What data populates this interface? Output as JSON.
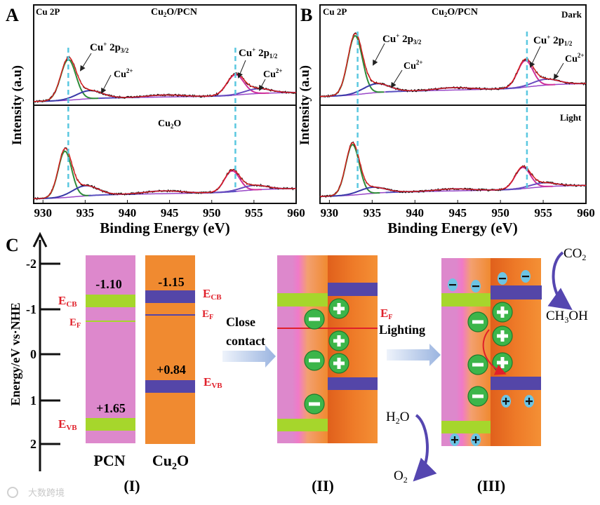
{
  "panel_labels": {
    "a": "A",
    "b": "B",
    "c": "C"
  },
  "xps": {
    "ylabel": "Intensity (a.u)",
    "xlabel": "Binding Energy (eV)",
    "element": "Cu 2P",
    "top_title_a": "Cu2O/PCN",
    "bottom_title_a": "Cu2O",
    "top_title_b": "Cu2O/PCN",
    "state_dark": "Dark",
    "state_light": "Light",
    "peak_label_32": {
      "main": "Cu",
      "sup": "+",
      "mid": " 2p",
      "sub": "3/2"
    },
    "peak_label_12": {
      "main": "Cu",
      "sup": "+",
      "mid": " 2p",
      "sub": "1/2"
    },
    "peak_label_cu2": {
      "main": "Cu",
      "sup": "2+"
    },
    "xticks": [
      "930",
      "935",
      "940",
      "945",
      "950",
      "955",
      "960"
    ]
  },
  "chart_data": [
    {
      "type": "line",
      "title": "A: Cu2O/PCN",
      "xlabel": "Binding Energy (eV)",
      "ylabel": "Intensity (a.u)",
      "xlim": [
        928.9,
        960
      ],
      "ref_lines": [
        933.0,
        952.8
      ],
      "peaks": [
        {
          "name": "Cu+ 2p3/2",
          "center": 933.0,
          "height": 1.0,
          "width": 0.9
        },
        {
          "name": "Cu2+",
          "center": 935.5,
          "height": 0.2,
          "width": 1.5
        },
        {
          "name": "satellite",
          "center": 944.5,
          "height": 0.05,
          "width": 2.0
        },
        {
          "name": "Cu+ 2p1/2",
          "center": 952.8,
          "height": 0.5,
          "width": 1.0
        },
        {
          "name": "Cu2+",
          "center": 955.5,
          "height": 0.12,
          "width": 1.5
        }
      ]
    },
    {
      "type": "line",
      "title": "A: Cu2O",
      "xlim": [
        928.9,
        960
      ],
      "ref_lines": [
        933.0,
        952.8
      ],
      "peaks": [
        {
          "name": "Cu+ 2p3/2",
          "center": 932.6,
          "height": 1.0,
          "width": 0.8
        },
        {
          "name": "Cu2+",
          "center": 935.0,
          "height": 0.22,
          "width": 1.5
        },
        {
          "name": "satellite",
          "center": 944.2,
          "height": 0.06,
          "width": 2.2
        },
        {
          "name": "Cu+ 2p1/2",
          "center": 952.4,
          "height": 0.45,
          "width": 0.9
        },
        {
          "name": "Cu2+",
          "center": 955.0,
          "height": 0.1,
          "width": 1.5
        }
      ]
    },
    {
      "type": "line",
      "title": "B: Cu2O/PCN Dark",
      "xlim": [
        928.9,
        960
      ],
      "ref_lines": [
        933.3,
        953.1
      ],
      "peaks": [
        {
          "name": "Cu+ 2p3/2",
          "center": 933.0,
          "height": 1.0,
          "width": 0.85
        },
        {
          "name": "Cu2+",
          "center": 935.5,
          "height": 0.15,
          "width": 1.5
        },
        {
          "name": "satellite",
          "center": 944.5,
          "height": 0.04,
          "width": 2.0
        },
        {
          "name": "Cu+ 2p1/2",
          "center": 952.9,
          "height": 0.45,
          "width": 0.9
        },
        {
          "name": "Cu2+",
          "center": 955.3,
          "height": 0.1,
          "width": 1.5
        }
      ]
    },
    {
      "type": "line",
      "title": "B: Cu2O/PCN Light",
      "xlim": [
        928.9,
        960
      ],
      "ref_lines": [
        933.3,
        953.1
      ],
      "peaks": [
        {
          "name": "Cu+ 2p3/2",
          "center": 932.7,
          "height": 1.0,
          "width": 0.8
        },
        {
          "name": "Cu2+",
          "center": 935.0,
          "height": 0.12,
          "width": 1.5
        },
        {
          "name": "satellite",
          "center": 944.5,
          "height": 0.04,
          "width": 2.0
        },
        {
          "name": "Cu+ 2p1/2",
          "center": 952.6,
          "height": 0.42,
          "width": 0.9
        },
        {
          "name": "Cu2+",
          "center": 955.0,
          "height": 0.08,
          "width": 1.5
        }
      ]
    }
  ],
  "band": {
    "axis_label": "Energy/eV vs·NHE",
    "ticks": [
      "-2",
      "-1",
      "0",
      "1",
      "2"
    ],
    "pcn_cb": "-1.10",
    "pcn_vb": "+1.65",
    "cu2o_cb": "-1.15",
    "cu2o_vb": "+0.84",
    "e": "E",
    "cb": "CB",
    "vb": "VB",
    "f": "F",
    "pcn": "PCN",
    "cu2o": "Cu2O",
    "close": "Close",
    "contact": "contact",
    "lighting": "Lighting",
    "stage1": "(I)",
    "stage2": "(II)",
    "stage3": "(III)",
    "co2": "CO2",
    "ch3oh": "CH3OH",
    "h2o": "H2O",
    "o2": "O2",
    "minus": "−",
    "plus": "+"
  },
  "watermark": "大数跨境",
  "colors": {
    "pcn": "#dd88cc",
    "cu2o": "#f08a30",
    "green_band": "#a6d62c",
    "blue_band": "#5446a8",
    "ef": "#e0202a",
    "dash": "#5bc8e0",
    "charge": "#3cb54a",
    "small_charge": "#6cc4e4"
  }
}
